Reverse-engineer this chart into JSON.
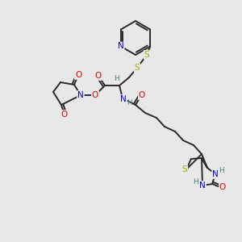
{
  "bg_color": "#e8e8e8",
  "bond_color": "#2a2a2a",
  "atom_colors": {
    "N": "#0000cc",
    "O": "#dd0000",
    "S": "#aaaa00",
    "H": "#4a8080",
    "C": "#2a2a2a"
  },
  "figsize": [
    3.0,
    3.0
  ],
  "dpi": 100
}
